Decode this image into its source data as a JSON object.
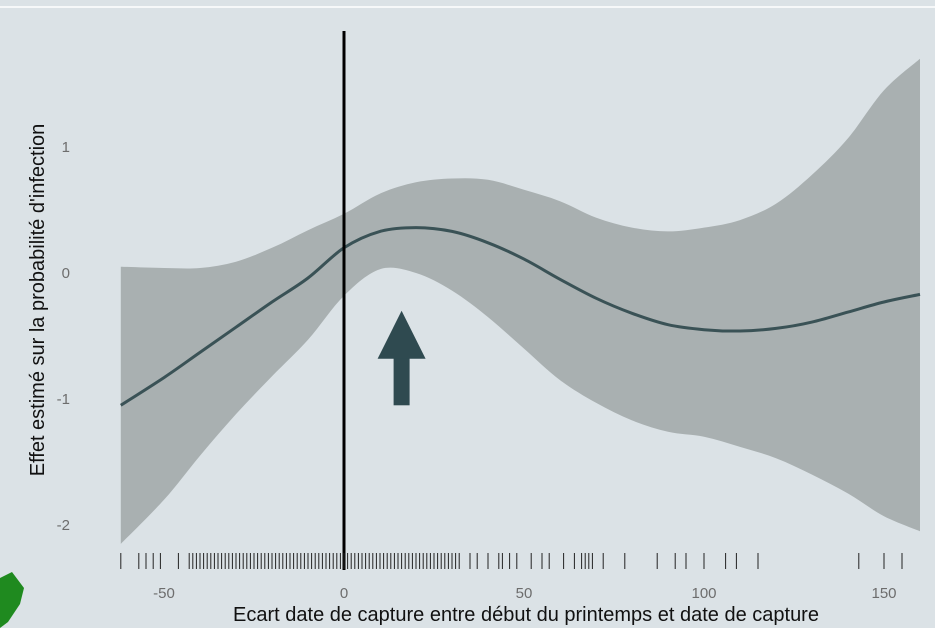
{
  "chart_data": {
    "type": "line",
    "title": "",
    "xlabel": "Ecart date de capture entre début du printemps et date de capture",
    "ylabel": "Effet estimé sur la probabilité d'infection",
    "xlim": [
      -62,
      160
    ],
    "ylim": [
      -2.2,
      2.1
    ],
    "x_ticks": [
      -50,
      0,
      50,
      100,
      150
    ],
    "x_tick_labels": [
      "-50",
      "0",
      "50",
      "100",
      "150"
    ],
    "y_ticks": [
      1,
      0,
      -1,
      -2
    ],
    "y_tick_labels": [
      "1",
      "0",
      "-1",
      "-2"
    ],
    "grid": false,
    "reference_line_x": 0,
    "series": [
      {
        "x": [
          -62,
          -50,
          -40,
          -30,
          -20,
          -10,
          0,
          10,
          20,
          30,
          40,
          50,
          60,
          70,
          80,
          90,
          100,
          110,
          120,
          130,
          140,
          150,
          160
        ],
        "estimate": [
          -1.05,
          -0.83,
          -0.63,
          -0.43,
          -0.23,
          -0.04,
          0.2,
          0.33,
          0.36,
          0.33,
          0.24,
          0.11,
          -0.05,
          -0.2,
          -0.32,
          -0.41,
          -0.45,
          -0.46,
          -0.44,
          -0.39,
          -0.31,
          -0.23,
          -0.17
        ],
        "lower": [
          -2.15,
          -1.8,
          -1.45,
          -1.12,
          -0.82,
          -0.53,
          -0.18,
          0.03,
          0.0,
          -0.14,
          -0.35,
          -0.6,
          -0.85,
          -1.03,
          -1.17,
          -1.26,
          -1.3,
          -1.38,
          -1.47,
          -1.6,
          -1.75,
          -1.93,
          -2.05
        ],
        "upper": [
          0.05,
          0.04,
          0.04,
          0.09,
          0.2,
          0.34,
          0.47,
          0.63,
          0.72,
          0.75,
          0.74,
          0.66,
          0.57,
          0.44,
          0.36,
          0.33,
          0.36,
          0.42,
          0.55,
          0.78,
          1.07,
          1.45,
          1.7
        ]
      }
    ],
    "rug": [
      -62,
      -57,
      -55,
      -53,
      -51,
      -46,
      -43,
      -42,
      -41,
      -40,
      -39,
      -38,
      -37,
      -36,
      -35,
      -34,
      -33,
      -32,
      -31,
      -30,
      -29,
      -28,
      -27,
      -26,
      -25,
      -24,
      -23,
      -22,
      -21,
      -20,
      -19,
      -18,
      -17,
      -16,
      -15,
      -14,
      -13,
      -12,
      -11,
      -10,
      -9,
      -8,
      -7,
      -6,
      -5,
      -4,
      -3,
      -2,
      -1,
      0,
      1,
      2,
      3,
      4,
      5,
      6,
      7,
      8,
      9,
      10,
      11,
      12,
      13,
      14,
      15,
      16,
      17,
      18,
      19,
      20,
      21,
      22,
      23,
      24,
      25,
      26,
      27,
      28,
      29,
      30,
      31,
      32,
      35,
      37,
      40,
      43,
      44,
      46,
      48,
      52,
      55,
      57,
      61,
      64,
      66,
      67,
      68,
      69,
      72,
      78,
      87,
      92,
      95,
      100,
      106,
      109,
      115,
      143,
      150,
      155
    ],
    "annotation": {
      "type": "arrow",
      "direction": "up",
      "x": 16,
      "y_from": -1.05,
      "y_to": -0.3,
      "color": "#2f4a50"
    },
    "colors": {
      "background": "#dbe2e6",
      "ribbon": "#a9b0b1",
      "line": "#3a5256",
      "reference": "#000000",
      "tick_label": "#6d6d6d"
    }
  },
  "decor": {
    "corner_icon": "green-shape-icon",
    "corner_color": "#1f8a1f"
  }
}
